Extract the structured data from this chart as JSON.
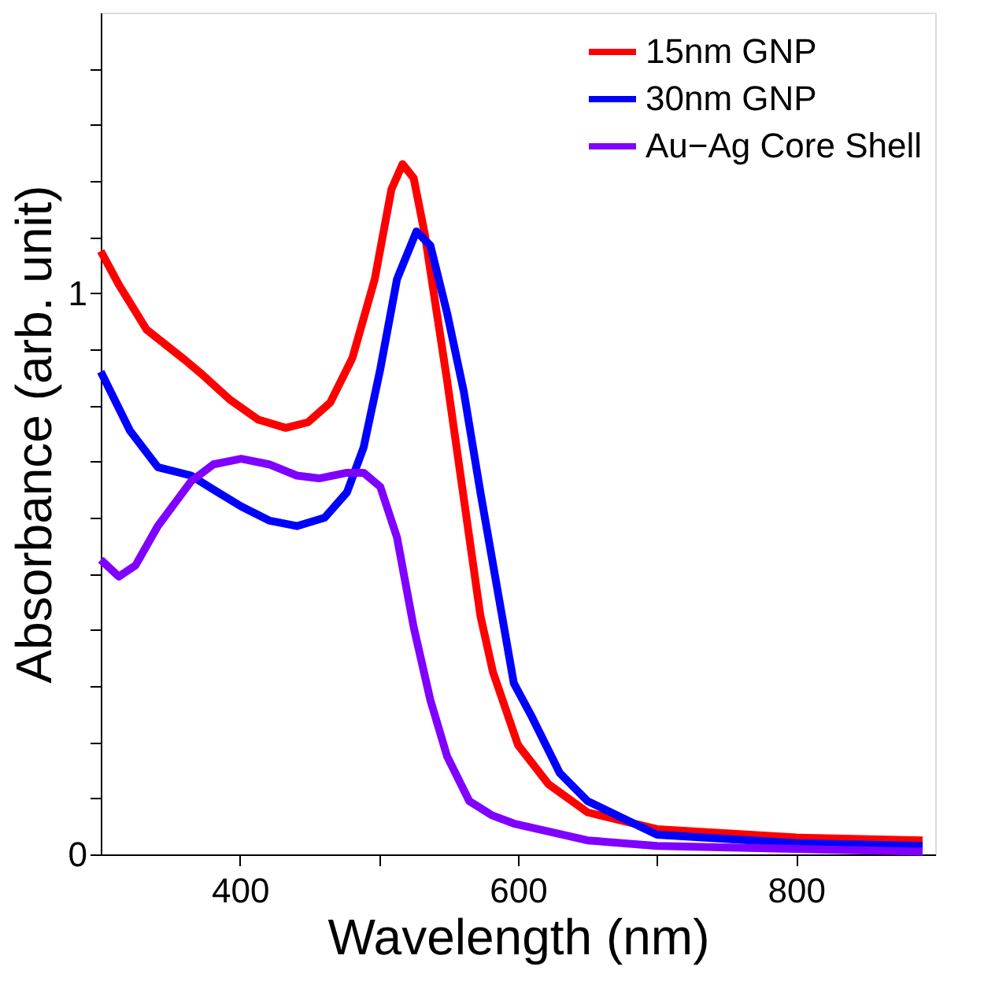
{
  "chart_data": {
    "type": "line",
    "xlabel": "Wavelength (nm)",
    "ylabel": "Absorbance (arb. unit)",
    "xlim": [
      300,
      900
    ],
    "ylim": [
      0,
      1.5
    ],
    "xticks": [
      400,
      {
        "value": 500,
        "label": null
      },
      600,
      {
        "value": 700,
        "label": null
      },
      800
    ],
    "yticks": [
      0,
      {
        "value": 0.1,
        "label": null
      },
      {
        "value": 0.2,
        "label": null
      },
      {
        "value": 0.3,
        "label": null
      },
      {
        "value": 0.4,
        "label": null
      },
      {
        "value": 0.5,
        "label": null
      },
      {
        "value": 0.6,
        "label": null
      },
      {
        "value": 0.7,
        "label": null
      },
      {
        "value": 0.8,
        "label": null
      },
      {
        "value": 0.9,
        "label": null
      },
      1,
      {
        "value": 1.1,
        "label": null
      },
      {
        "value": 1.2,
        "label": null
      },
      {
        "value": 1.3,
        "label": null
      },
      {
        "value": 1.4,
        "label": null
      }
    ],
    "grid": false,
    "legend": "top right",
    "line_style": "solid",
    "series": [
      {
        "name": "15nm GNP",
        "color": "#ff0000",
        "x": [
          300,
          313,
          333,
          361,
          373,
          393,
          413,
          433,
          449,
          465,
          481,
          497,
          509,
          517,
          525,
          533,
          541,
          549,
          557,
          565,
          573,
          582,
          600,
          622,
          650,
          700,
          800,
          891
        ],
        "values": [
          1.075,
          1.015,
          0.935,
          0.88,
          0.855,
          0.81,
          0.775,
          0.76,
          0.77,
          0.805,
          0.885,
          1.025,
          1.185,
          1.23,
          1.205,
          1.105,
          0.975,
          0.845,
          0.705,
          0.565,
          0.425,
          0.325,
          0.195,
          0.125,
          0.075,
          0.045,
          0.03,
          0.025
        ]
      },
      {
        "name": "30nm GNP",
        "color": "#0000ff",
        "x": [
          300,
          321,
          341,
          365,
          381,
          401,
          421,
          441,
          461,
          477,
          489,
          501,
          513,
          527,
          537,
          549,
          561,
          573,
          585,
          597,
          610,
          630,
          650,
          700,
          800,
          891
        ],
        "values": [
          0.86,
          0.755,
          0.69,
          0.675,
          0.65,
          0.62,
          0.595,
          0.585,
          0.6,
          0.645,
          0.725,
          0.865,
          1.025,
          1.11,
          1.085,
          0.965,
          0.825,
          0.645,
          0.475,
          0.305,
          0.245,
          0.145,
          0.095,
          0.035,
          0.02,
          0.015
        ]
      },
      {
        "name": "Au−Ag Core Shell",
        "color": "#8000ff",
        "x": [
          300,
          313,
          325,
          341,
          365,
          381,
          401,
          421,
          441,
          457,
          477,
          489,
          501,
          513,
          525,
          537,
          549,
          565,
          581,
          597,
          650,
          700,
          891
        ],
        "values": [
          0.525,
          0.495,
          0.515,
          0.585,
          0.665,
          0.695,
          0.705,
          0.695,
          0.675,
          0.67,
          0.68,
          0.68,
          0.655,
          0.565,
          0.405,
          0.275,
          0.175,
          0.095,
          0.07,
          0.055,
          0.025,
          0.015,
          0.005
        ]
      }
    ]
  }
}
